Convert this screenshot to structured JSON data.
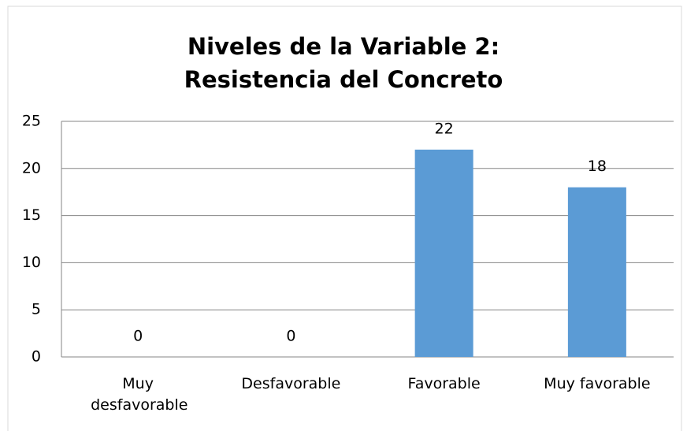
{
  "chart_data": {
    "type": "bar",
    "title": "Niveles de la Variable 2: Resistencia del Concreto",
    "categories": [
      "Muy desfavorable",
      "Desfavorable",
      "Favorable",
      "Muy favorable"
    ],
    "values": [
      0,
      0,
      22,
      18
    ],
    "color": "#5b9bd5",
    "ylim": [
      0,
      25
    ],
    "yticks": [
      0,
      5,
      10,
      15,
      20,
      25
    ],
    "grid": true
  }
}
